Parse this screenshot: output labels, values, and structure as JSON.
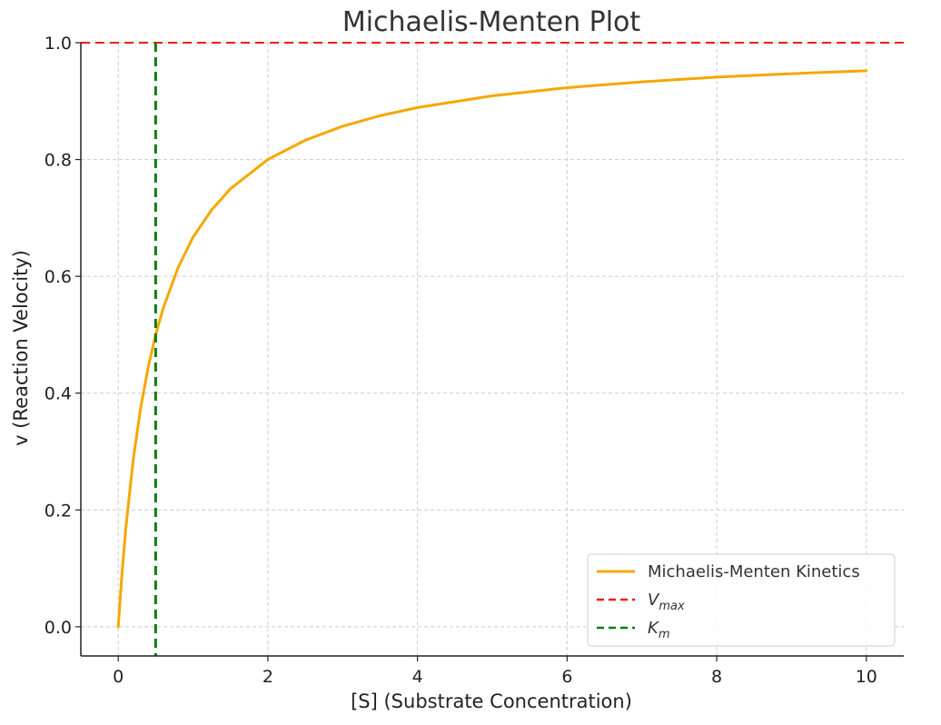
{
  "chart_data": {
    "type": "line",
    "title": "Michaelis-Menten Plot",
    "xlabel": "[S] (Substrate Concentration)",
    "ylabel": "v (Reaction Velocity)",
    "xlim": [
      -0.5,
      10.5
    ],
    "ylim": [
      -0.05,
      1.0
    ],
    "xticks": [
      0,
      2,
      4,
      6,
      8,
      10
    ],
    "yticks": [
      0.0,
      0.2,
      0.4,
      0.6,
      0.8,
      1.0
    ],
    "xtick_labels": [
      "0",
      "2",
      "4",
      "6",
      "8",
      "10"
    ],
    "ytick_labels": [
      "0.0",
      "0.2",
      "0.4",
      "0.6",
      "0.8",
      "1.0"
    ],
    "grid": true,
    "legend_position": "bottom-right",
    "series": [
      {
        "name": "Michaelis-Menten Kinetics",
        "kind": "line",
        "color": "#f5a800",
        "style": "solid",
        "x": [
          0,
          0.05,
          0.1,
          0.2,
          0.3,
          0.4,
          0.5,
          0.6,
          0.8,
          1.0,
          1.25,
          1.5,
          2.0,
          2.5,
          3.0,
          3.5,
          4.0,
          5.0,
          6.0,
          7.0,
          8.0,
          9.0,
          10.0
        ],
        "y": [
          0,
          0.091,
          0.167,
          0.286,
          0.375,
          0.444,
          0.5,
          0.545,
          0.615,
          0.667,
          0.714,
          0.75,
          0.8,
          0.833,
          0.857,
          0.875,
          0.889,
          0.909,
          0.923,
          0.933,
          0.941,
          0.947,
          0.952
        ]
      },
      {
        "name": "V_max",
        "name_main": "V",
        "name_sub": "max",
        "kind": "hline",
        "value": 1.0,
        "color": "#ee1c1c",
        "style": "dashed"
      },
      {
        "name": "K_m",
        "name_main": "K",
        "name_sub": "m",
        "kind": "vline",
        "value": 0.5,
        "color": "#0a7d0a",
        "style": "dashed"
      }
    ]
  }
}
